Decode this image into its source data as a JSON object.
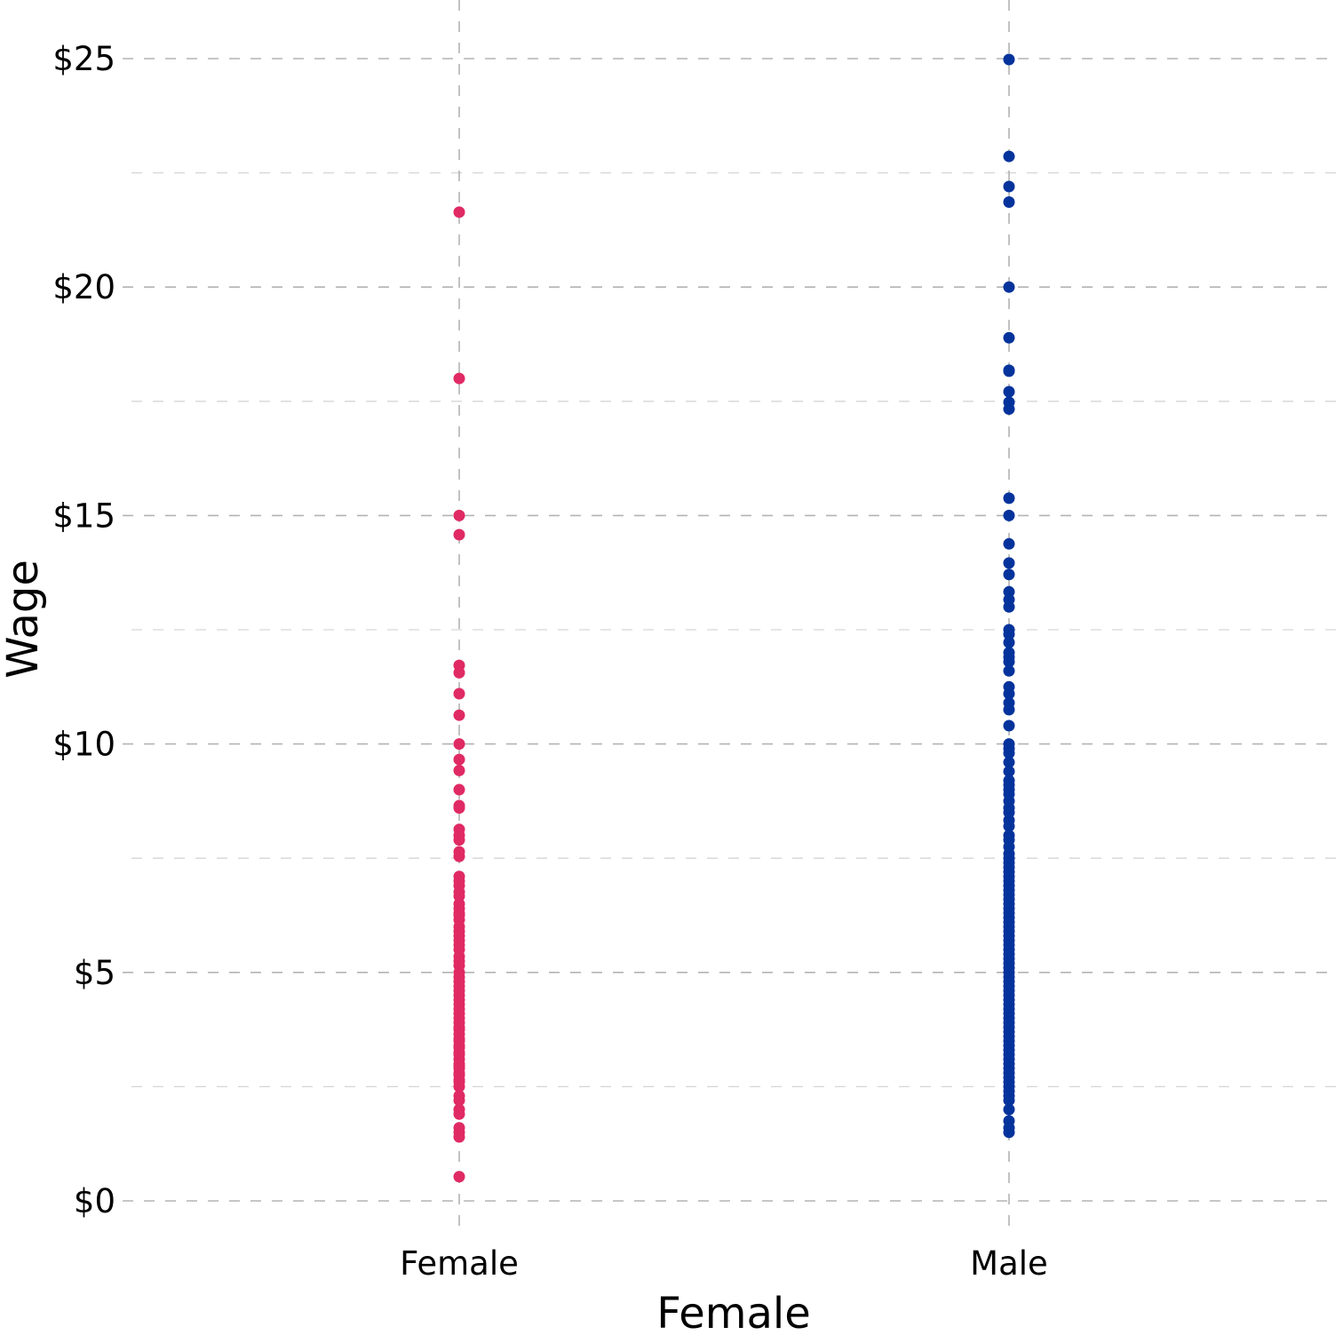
{
  "chart_data": {
    "type": "scatter",
    "subtype": "strip",
    "title": "",
    "xlabel": "Female",
    "ylabel": "Wage",
    "categories": [
      "Female",
      "Male"
    ],
    "ylim": [
      0,
      25
    ],
    "y_ticks": [
      0,
      5,
      10,
      15,
      20,
      25
    ],
    "y_tick_labels": [
      "$0",
      "$5",
      "$10",
      "$15",
      "$20",
      "$25"
    ],
    "y_minor_ticks": [
      2.5,
      7.5,
      12.5,
      17.5,
      22.5
    ],
    "grid": true,
    "legend": "none",
    "series": [
      {
        "name": "Female",
        "color": "#E02A64",
        "values": [
          21.64,
          18.0,
          15.0,
          14.58,
          11.72,
          11.56,
          11.1,
          10.63,
          10.0,
          9.66,
          9.42,
          9.0,
          8.65,
          8.6,
          8.13,
          8.0,
          7.9,
          7.64,
          7.54,
          7.1,
          7.0,
          6.9,
          6.76,
          6.67,
          6.5,
          6.4,
          6.3,
          6.25,
          6.15,
          6.0,
          5.9,
          5.8,
          5.7,
          5.6,
          5.5,
          5.35,
          5.25,
          5.15,
          5.0,
          4.9,
          4.8,
          4.7,
          4.6,
          4.5,
          4.4,
          4.3,
          4.2,
          4.1,
          4.0,
          3.9,
          3.8,
          3.75,
          3.65,
          3.55,
          3.5,
          3.4,
          3.35,
          3.25,
          3.2,
          3.1,
          3.0,
          2.95,
          2.9,
          2.8,
          2.75,
          2.65,
          2.6,
          2.5,
          2.3,
          2.2,
          2.0,
          1.9,
          1.6,
          1.5,
          1.4,
          0.53
        ]
      },
      {
        "name": "Male",
        "color": "#05339C",
        "values": [
          24.98,
          22.86,
          22.2,
          21.86,
          20.0,
          18.89,
          18.18,
          18.16,
          17.71,
          17.48,
          17.33,
          15.38,
          15.0,
          14.38,
          13.96,
          13.71,
          13.33,
          13.16,
          13.0,
          12.5,
          12.4,
          12.22,
          12.0,
          11.9,
          11.8,
          11.6,
          11.25,
          11.1,
          10.9,
          10.75,
          10.4,
          10.0,
          9.9,
          9.8,
          9.6,
          9.4,
          9.2,
          9.1,
          9.0,
          8.9,
          8.75,
          8.6,
          8.5,
          8.33,
          8.2,
          8.0,
          7.9,
          7.75,
          7.6,
          7.5,
          7.4,
          7.3,
          7.2,
          7.1,
          7.0,
          6.9,
          6.8,
          6.7,
          6.6,
          6.5,
          6.4,
          6.3,
          6.2,
          6.1,
          6.0,
          5.9,
          5.8,
          5.7,
          5.6,
          5.5,
          5.4,
          5.3,
          5.2,
          5.1,
          5.0,
          4.9,
          4.8,
          4.7,
          4.6,
          4.5,
          4.4,
          4.3,
          4.2,
          4.1,
          4.0,
          3.9,
          3.8,
          3.7,
          3.6,
          3.5,
          3.4,
          3.3,
          3.2,
          3.1,
          3.0,
          2.9,
          2.8,
          2.7,
          2.6,
          2.5,
          2.4,
          2.3,
          2.2,
          2.0,
          1.75,
          1.6,
          1.5
        ]
      }
    ]
  }
}
